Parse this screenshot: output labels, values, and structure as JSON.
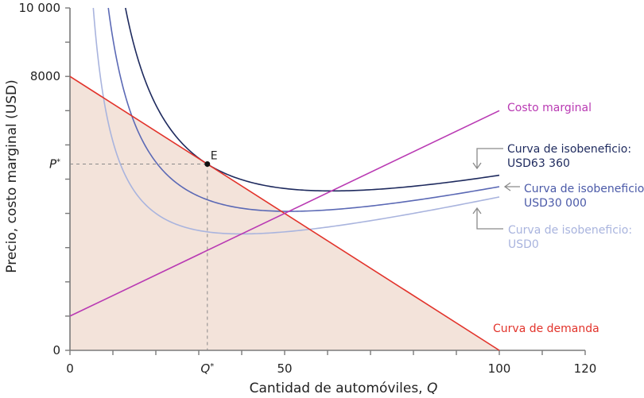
{
  "chart_data": {
    "type": "line",
    "title": "",
    "xlabel": "Cantidad de automóviles, Q",
    "xlabel_prefix": "Cantidad de automóviles, ",
    "xlabel_var": "Q",
    "ylabel": "Precio, costo marginal (USD)",
    "xlim": [
      0,
      120
    ],
    "ylim": [
      0,
      10000
    ],
    "x_ticks": [
      0,
      10,
      20,
      30,
      40,
      50,
      60,
      70,
      80,
      90,
      100,
      110,
      120
    ],
    "x_tick_labels": [
      {
        "value": 0,
        "label": "0"
      },
      {
        "value": 32,
        "label": "Q*"
      },
      {
        "value": 50,
        "label": "50"
      },
      {
        "value": 100,
        "label": "100"
      },
      {
        "value": 120,
        "label": "120"
      }
    ],
    "y_ticks": [
      0,
      1000,
      2000,
      3000,
      4000,
      5000,
      6000,
      7000,
      8000,
      9000,
      10000
    ],
    "y_tick_labels": [
      {
        "value": 0,
        "label": "0"
      },
      {
        "value": 5440,
        "label": "P*"
      },
      {
        "value": 8000,
        "label": "8000"
      },
      {
        "value": 10000,
        "label": "10 000"
      }
    ],
    "grid": false,
    "series": [
      {
        "name": "Curva de demanda",
        "kind": "linear",
        "color": "#e2332b",
        "points": [
          [
            0,
            8000
          ],
          [
            100,
            0
          ]
        ]
      },
      {
        "name": "Costo marginal",
        "kind": "linear",
        "color": "#b93ab3",
        "points": [
          [
            0,
            1000
          ],
          [
            100,
            7000
          ]
        ]
      },
      {
        "name": "Curva de isobeneficio: USD0",
        "kind": "isoprofit",
        "color": "#a9b4de",
        "profit": 0,
        "fixed_cost": 48000,
        "mc_intercept": 1000,
        "mc_slope": 60,
        "q_max": 100
      },
      {
        "name": "Curva de isobeneficio: USD30 000",
        "kind": "isoprofit",
        "color": "#5b69b5",
        "profit": 30000,
        "fixed_cost": 48000,
        "mc_intercept": 1000,
        "mc_slope": 60,
        "q_max": 100
      },
      {
        "name": "Curva de isobeneficio: USD63 360",
        "kind": "isoprofit",
        "color": "#1e2a5e",
        "profit": 63360,
        "fixed_cost": 48000,
        "mc_intercept": 1000,
        "mc_slope": 60,
        "q_max": 100
      }
    ],
    "shaded_region": {
      "name": "Área bajo la demanda",
      "color": "#f3e3da",
      "points": [
        [
          0,
          0
        ],
        [
          0,
          8000
        ],
        [
          100,
          0
        ]
      ]
    },
    "equilibrium": {
      "label": "E",
      "q": 32,
      "p": 5440,
      "q_label": "Q*",
      "p_label": "P*"
    },
    "annotations": [
      {
        "id": "mc",
        "text": "Costo marginal",
        "color": "#b93ab3"
      },
      {
        "id": "demand",
        "text": "Curva de demanda",
        "color": "#e2332b"
      },
      {
        "id": "iso63360",
        "line1": "Curva de isobeneficio:",
        "line2": "USD63 360",
        "color": "#1e2a5e"
      },
      {
        "id": "iso30000",
        "line1": "Curva de isobeneficio:",
        "line2": "USD30 000",
        "color": "#4b5aa8"
      },
      {
        "id": "iso0",
        "line1": "Curva de isobeneficio:",
        "line2": "USD0",
        "color": "#a9b4de"
      }
    ]
  },
  "colors": {
    "axis": "#7a7a7a",
    "text": "#222222",
    "dash": "#8a8a8a",
    "arrow": "#8a8a8a",
    "point": "#111111"
  }
}
